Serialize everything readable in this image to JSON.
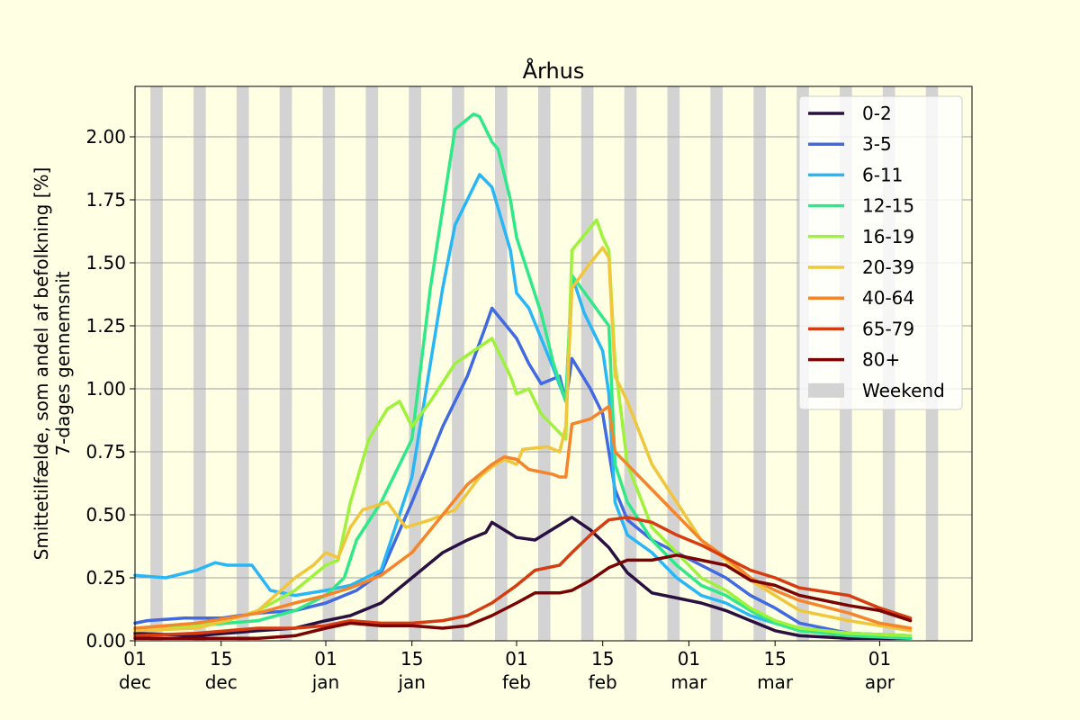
{
  "chart_data": {
    "type": "line",
    "title": "Århus",
    "ylabel_line1": "Smittetilfælde, som andel af befolkning [%]",
    "ylabel_line2": "7-dages gennemsnit",
    "xlabel": "",
    "x_range_days": [
      0,
      136
    ],
    "ylim": [
      0,
      2.2
    ],
    "yticks": [
      0.0,
      0.25,
      0.5,
      0.75,
      1.0,
      1.25,
      1.5,
      1.75,
      2.0
    ],
    "ytick_labels": [
      "0.00",
      "0.25",
      "0.50",
      "0.75",
      "1.00",
      "1.25",
      "1.50",
      "1.75",
      "2.00"
    ],
    "xticks": [
      {
        "day": 0,
        "day_label": "01",
        "month_label": "dec"
      },
      {
        "day": 14,
        "day_label": "15",
        "month_label": "dec"
      },
      {
        "day": 31,
        "day_label": "01",
        "month_label": "jan"
      },
      {
        "day": 45,
        "day_label": "15",
        "month_label": "jan"
      },
      {
        "day": 62,
        "day_label": "01",
        "month_label": "feb"
      },
      {
        "day": 76,
        "day_label": "15",
        "month_label": "feb"
      },
      {
        "day": 90,
        "day_label": "01",
        "month_label": "mar"
      },
      {
        "day": 104,
        "day_label": "15",
        "month_label": "mar"
      },
      {
        "day": 121,
        "day_label": "01",
        "month_label": "apr"
      }
    ],
    "grid": "horizontal",
    "legend_position": "top-right",
    "weekend_label": "Weekend",
    "weekend_color": "#d3d3d3",
    "weekend_starts": [
      2.5,
      9.5,
      16.5,
      23.5,
      30.5,
      37.5,
      44.5,
      51.5,
      58.5,
      65.5,
      72.5,
      79.5,
      86.5,
      93.5,
      100.5,
      107.5,
      114.5,
      121.5,
      128.5
    ],
    "series": [
      {
        "name": "0-2",
        "color": "#2a1040",
        "points": [
          [
            0,
            0.03
          ],
          [
            10,
            0.02
          ],
          [
            20,
            0.04
          ],
          [
            26,
            0.05
          ],
          [
            31,
            0.08
          ],
          [
            35,
            0.1
          ],
          [
            40,
            0.15
          ],
          [
            45,
            0.25
          ],
          [
            50,
            0.35
          ],
          [
            54,
            0.4
          ],
          [
            57,
            0.43
          ],
          [
            58,
            0.47
          ],
          [
            62,
            0.41
          ],
          [
            65,
            0.4
          ],
          [
            69,
            0.46
          ],
          [
            71,
            0.49
          ],
          [
            74,
            0.44
          ],
          [
            77,
            0.37
          ],
          [
            80,
            0.27
          ],
          [
            84,
            0.19
          ],
          [
            88,
            0.17
          ],
          [
            92,
            0.15
          ],
          [
            96,
            0.12
          ],
          [
            100,
            0.08
          ],
          [
            104,
            0.04
          ],
          [
            108,
            0.02
          ],
          [
            116,
            0.01
          ],
          [
            126,
            0.01
          ]
        ]
      },
      {
        "name": "3-5",
        "color": "#4169e1",
        "points": [
          [
            0,
            0.07
          ],
          [
            2,
            0.08
          ],
          [
            8,
            0.09
          ],
          [
            14,
            0.09
          ],
          [
            20,
            0.11
          ],
          [
            26,
            0.12
          ],
          [
            31,
            0.15
          ],
          [
            36,
            0.2
          ],
          [
            40,
            0.27
          ],
          [
            45,
            0.55
          ],
          [
            50,
            0.85
          ],
          [
            54,
            1.05
          ],
          [
            57,
            1.25
          ],
          [
            58,
            1.32
          ],
          [
            62,
            1.2
          ],
          [
            64,
            1.1
          ],
          [
            66,
            1.02
          ],
          [
            69,
            1.05
          ],
          [
            70,
            0.95
          ],
          [
            71,
            1.12
          ],
          [
            74,
            1.0
          ],
          [
            76,
            0.9
          ],
          [
            78,
            0.6
          ],
          [
            80,
            0.48
          ],
          [
            84,
            0.4
          ],
          [
            88,
            0.35
          ],
          [
            92,
            0.3
          ],
          [
            96,
            0.25
          ],
          [
            100,
            0.18
          ],
          [
            104,
            0.13
          ],
          [
            108,
            0.07
          ],
          [
            116,
            0.03
          ],
          [
            126,
            0.02
          ]
        ]
      },
      {
        "name": "6-11",
        "color": "#29b6f6",
        "points": [
          [
            0,
            0.26
          ],
          [
            5,
            0.25
          ],
          [
            10,
            0.28
          ],
          [
            13,
            0.31
          ],
          [
            15,
            0.3
          ],
          [
            19,
            0.3
          ],
          [
            22,
            0.2
          ],
          [
            26,
            0.18
          ],
          [
            31,
            0.2
          ],
          [
            35,
            0.22
          ],
          [
            40,
            0.28
          ],
          [
            45,
            0.65
          ],
          [
            50,
            1.4
          ],
          [
            52,
            1.65
          ],
          [
            56,
            1.85
          ],
          [
            58,
            1.8
          ],
          [
            61,
            1.55
          ],
          [
            62,
            1.38
          ],
          [
            64,
            1.32
          ],
          [
            66,
            1.2
          ],
          [
            68,
            1.08
          ],
          [
            70,
            0.95
          ],
          [
            71,
            1.45
          ],
          [
            73,
            1.3
          ],
          [
            76,
            1.15
          ],
          [
            77,
            0.98
          ],
          [
            78,
            0.55
          ],
          [
            80,
            0.42
          ],
          [
            84,
            0.35
          ],
          [
            88,
            0.25
          ],
          [
            92,
            0.18
          ],
          [
            96,
            0.15
          ],
          [
            100,
            0.1
          ],
          [
            104,
            0.07
          ],
          [
            108,
            0.05
          ],
          [
            116,
            0.03
          ],
          [
            126,
            0.02
          ]
        ]
      },
      {
        "name": "12-15",
        "color": "#30e88a",
        "points": [
          [
            0,
            0.05
          ],
          [
            10,
            0.06
          ],
          [
            20,
            0.08
          ],
          [
            26,
            0.12
          ],
          [
            31,
            0.18
          ],
          [
            34,
            0.25
          ],
          [
            36,
            0.4
          ],
          [
            40,
            0.55
          ],
          [
            45,
            0.8
          ],
          [
            48,
            1.4
          ],
          [
            52,
            2.03
          ],
          [
            55,
            2.09
          ],
          [
            56,
            2.08
          ],
          [
            58,
            1.98
          ],
          [
            59,
            1.95
          ],
          [
            61,
            1.75
          ],
          [
            62,
            1.6
          ],
          [
            64,
            1.45
          ],
          [
            66,
            1.3
          ],
          [
            68,
            1.1
          ],
          [
            70,
            0.95
          ],
          [
            71,
            1.45
          ],
          [
            74,
            1.35
          ],
          [
            77,
            1.25
          ],
          [
            78,
            0.7
          ],
          [
            80,
            0.55
          ],
          [
            84,
            0.4
          ],
          [
            88,
            0.3
          ],
          [
            92,
            0.22
          ],
          [
            96,
            0.18
          ],
          [
            100,
            0.12
          ],
          [
            104,
            0.07
          ],
          [
            108,
            0.04
          ],
          [
            116,
            0.02
          ],
          [
            126,
            0.01
          ]
        ]
      },
      {
        "name": "16-19",
        "color": "#9ef23c",
        "points": [
          [
            0,
            0.05
          ],
          [
            10,
            0.06
          ],
          [
            15,
            0.08
          ],
          [
            20,
            0.12
          ],
          [
            26,
            0.2
          ],
          [
            31,
            0.3
          ],
          [
            33,
            0.32
          ],
          [
            35,
            0.55
          ],
          [
            38,
            0.8
          ],
          [
            41,
            0.92
          ],
          [
            43,
            0.95
          ],
          [
            45,
            0.85
          ],
          [
            48,
            0.95
          ],
          [
            52,
            1.1
          ],
          [
            55,
            1.15
          ],
          [
            58,
            1.2
          ],
          [
            61,
            1.05
          ],
          [
            62,
            0.98
          ],
          [
            64,
            1.0
          ],
          [
            66,
            0.9
          ],
          [
            68,
            0.85
          ],
          [
            70,
            0.8
          ],
          [
            71,
            1.55
          ],
          [
            75,
            1.67
          ],
          [
            76,
            1.6
          ],
          [
            77,
            1.55
          ],
          [
            78,
            1.1
          ],
          [
            80,
            0.7
          ],
          [
            84,
            0.45
          ],
          [
            88,
            0.35
          ],
          [
            92,
            0.25
          ],
          [
            96,
            0.2
          ],
          [
            100,
            0.13
          ],
          [
            104,
            0.08
          ],
          [
            108,
            0.05
          ],
          [
            116,
            0.03
          ],
          [
            126,
            0.02
          ]
        ]
      },
      {
        "name": "20-39",
        "color": "#f0c63c",
        "points": [
          [
            0,
            0.04
          ],
          [
            10,
            0.05
          ],
          [
            15,
            0.08
          ],
          [
            20,
            0.12
          ],
          [
            26,
            0.25
          ],
          [
            29,
            0.3
          ],
          [
            31,
            0.35
          ],
          [
            33,
            0.33
          ],
          [
            35,
            0.45
          ],
          [
            37,
            0.52
          ],
          [
            41,
            0.55
          ],
          [
            44,
            0.45
          ],
          [
            48,
            0.48
          ],
          [
            52,
            0.52
          ],
          [
            56,
            0.65
          ],
          [
            58,
            0.69
          ],
          [
            60,
            0.72
          ],
          [
            62,
            0.7
          ],
          [
            63,
            0.76
          ],
          [
            67,
            0.77
          ],
          [
            69,
            0.75
          ],
          [
            70,
            0.85
          ],
          [
            71,
            1.4
          ],
          [
            74,
            1.5
          ],
          [
            76,
            1.56
          ],
          [
            77,
            1.52
          ],
          [
            78,
            1.05
          ],
          [
            80,
            0.95
          ],
          [
            84,
            0.7
          ],
          [
            88,
            0.55
          ],
          [
            92,
            0.4
          ],
          [
            96,
            0.32
          ],
          [
            100,
            0.24
          ],
          [
            104,
            0.18
          ],
          [
            108,
            0.12
          ],
          [
            116,
            0.08
          ],
          [
            121,
            0.06
          ],
          [
            126,
            0.04
          ]
        ]
      },
      {
        "name": "40-64",
        "color": "#f5852d",
        "points": [
          [
            0,
            0.05
          ],
          [
            10,
            0.07
          ],
          [
            15,
            0.09
          ],
          [
            20,
            0.11
          ],
          [
            26,
            0.15
          ],
          [
            31,
            0.18
          ],
          [
            35,
            0.21
          ],
          [
            40,
            0.26
          ],
          [
            45,
            0.35
          ],
          [
            50,
            0.5
          ],
          [
            54,
            0.62
          ],
          [
            58,
            0.7
          ],
          [
            60,
            0.73
          ],
          [
            62,
            0.72
          ],
          [
            64,
            0.68
          ],
          [
            66,
            0.67
          ],
          [
            68,
            0.66
          ],
          [
            69,
            0.65
          ],
          [
            70,
            0.65
          ],
          [
            71,
            0.86
          ],
          [
            74,
            0.88
          ],
          [
            77,
            0.93
          ],
          [
            78,
            0.75
          ],
          [
            80,
            0.7
          ],
          [
            84,
            0.6
          ],
          [
            88,
            0.5
          ],
          [
            92,
            0.4
          ],
          [
            96,
            0.33
          ],
          [
            100,
            0.25
          ],
          [
            104,
            0.2
          ],
          [
            108,
            0.16
          ],
          [
            116,
            0.11
          ],
          [
            121,
            0.07
          ],
          [
            126,
            0.05
          ]
        ]
      },
      {
        "name": "65-79",
        "color": "#d63c11",
        "points": [
          [
            0,
            0.02
          ],
          [
            10,
            0.03
          ],
          [
            20,
            0.05
          ],
          [
            26,
            0.05
          ],
          [
            31,
            0.06
          ],
          [
            35,
            0.08
          ],
          [
            40,
            0.07
          ],
          [
            45,
            0.07
          ],
          [
            50,
            0.08
          ],
          [
            54,
            0.1
          ],
          [
            58,
            0.15
          ],
          [
            62,
            0.22
          ],
          [
            65,
            0.28
          ],
          [
            69,
            0.3
          ],
          [
            71,
            0.35
          ],
          [
            74,
            0.42
          ],
          [
            77,
            0.48
          ],
          [
            80,
            0.49
          ],
          [
            84,
            0.47
          ],
          [
            88,
            0.42
          ],
          [
            92,
            0.38
          ],
          [
            96,
            0.33
          ],
          [
            100,
            0.28
          ],
          [
            104,
            0.25
          ],
          [
            108,
            0.21
          ],
          [
            116,
            0.18
          ],
          [
            121,
            0.13
          ],
          [
            126,
            0.09
          ]
        ]
      },
      {
        "name": "80+",
        "color": "#7a0403",
        "points": [
          [
            0,
            0.01
          ],
          [
            10,
            0.01
          ],
          [
            20,
            0.01
          ],
          [
            26,
            0.02
          ],
          [
            31,
            0.05
          ],
          [
            35,
            0.07
          ],
          [
            40,
            0.06
          ],
          [
            45,
            0.06
          ],
          [
            50,
            0.05
          ],
          [
            54,
            0.06
          ],
          [
            58,
            0.1
          ],
          [
            62,
            0.15
          ],
          [
            65,
            0.19
          ],
          [
            69,
            0.19
          ],
          [
            71,
            0.2
          ],
          [
            74,
            0.24
          ],
          [
            77,
            0.29
          ],
          [
            80,
            0.32
          ],
          [
            84,
            0.32
          ],
          [
            88,
            0.34
          ],
          [
            92,
            0.32
          ],
          [
            96,
            0.3
          ],
          [
            100,
            0.24
          ],
          [
            104,
            0.22
          ],
          [
            108,
            0.18
          ],
          [
            116,
            0.14
          ],
          [
            121,
            0.12
          ],
          [
            126,
            0.08
          ]
        ]
      }
    ]
  }
}
